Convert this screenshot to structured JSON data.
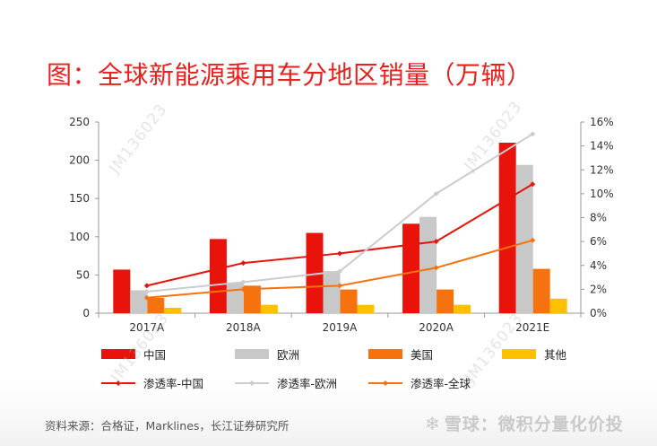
{
  "title": "图：全球新能源乘用车分地区销量（万辆）",
  "source": "资料来源：合格证，Marklines，长江证券研究所",
  "watermark": {
    "brand": "雪球：微积分量化价投",
    "id": "JM136023"
  },
  "chart_data": {
    "type": "bar",
    "categories": [
      "2017A",
      "2018A",
      "2019A",
      "2020A",
      "2021E"
    ],
    "y_left": {
      "ticks": [
        "0",
        "50",
        "100",
        "150",
        "200",
        "250"
      ],
      "min": 0,
      "max": 250
    },
    "y_right": {
      "ticks": [
        "0%",
        "2%",
        "4%",
        "6%",
        "8%",
        "10%",
        "12%",
        "14%",
        "16%"
      ],
      "min": 0,
      "max": 16
    },
    "bar_series": [
      {
        "name": "中国",
        "color": "#e8130b",
        "values": [
          57,
          97,
          105,
          117,
          223
        ]
      },
      {
        "name": "欧洲",
        "color": "#c8c8c8",
        "values": [
          30,
          40,
          55,
          126,
          194
        ]
      },
      {
        "name": "美国",
        "color": "#f6720f",
        "values": [
          20,
          36,
          31,
          31,
          58
        ]
      },
      {
        "name": "其他",
        "color": "#ffc000",
        "values": [
          7,
          11,
          11,
          11,
          19
        ]
      }
    ],
    "line_series": [
      {
        "name": "渗透率-中国",
        "color": "#e8130b",
        "values": [
          2.3,
          4.2,
          5.0,
          6.0,
          10.8
        ]
      },
      {
        "name": "渗透率-欧洲",
        "color": "#cccccc",
        "values": [
          1.8,
          2.6,
          3.5,
          10.0,
          15.0
        ]
      },
      {
        "name": "渗透率-全球",
        "color": "#f6720f",
        "values": [
          1.3,
          2.0,
          2.3,
          3.8,
          6.1
        ]
      }
    ],
    "legend_position": "bottom"
  }
}
